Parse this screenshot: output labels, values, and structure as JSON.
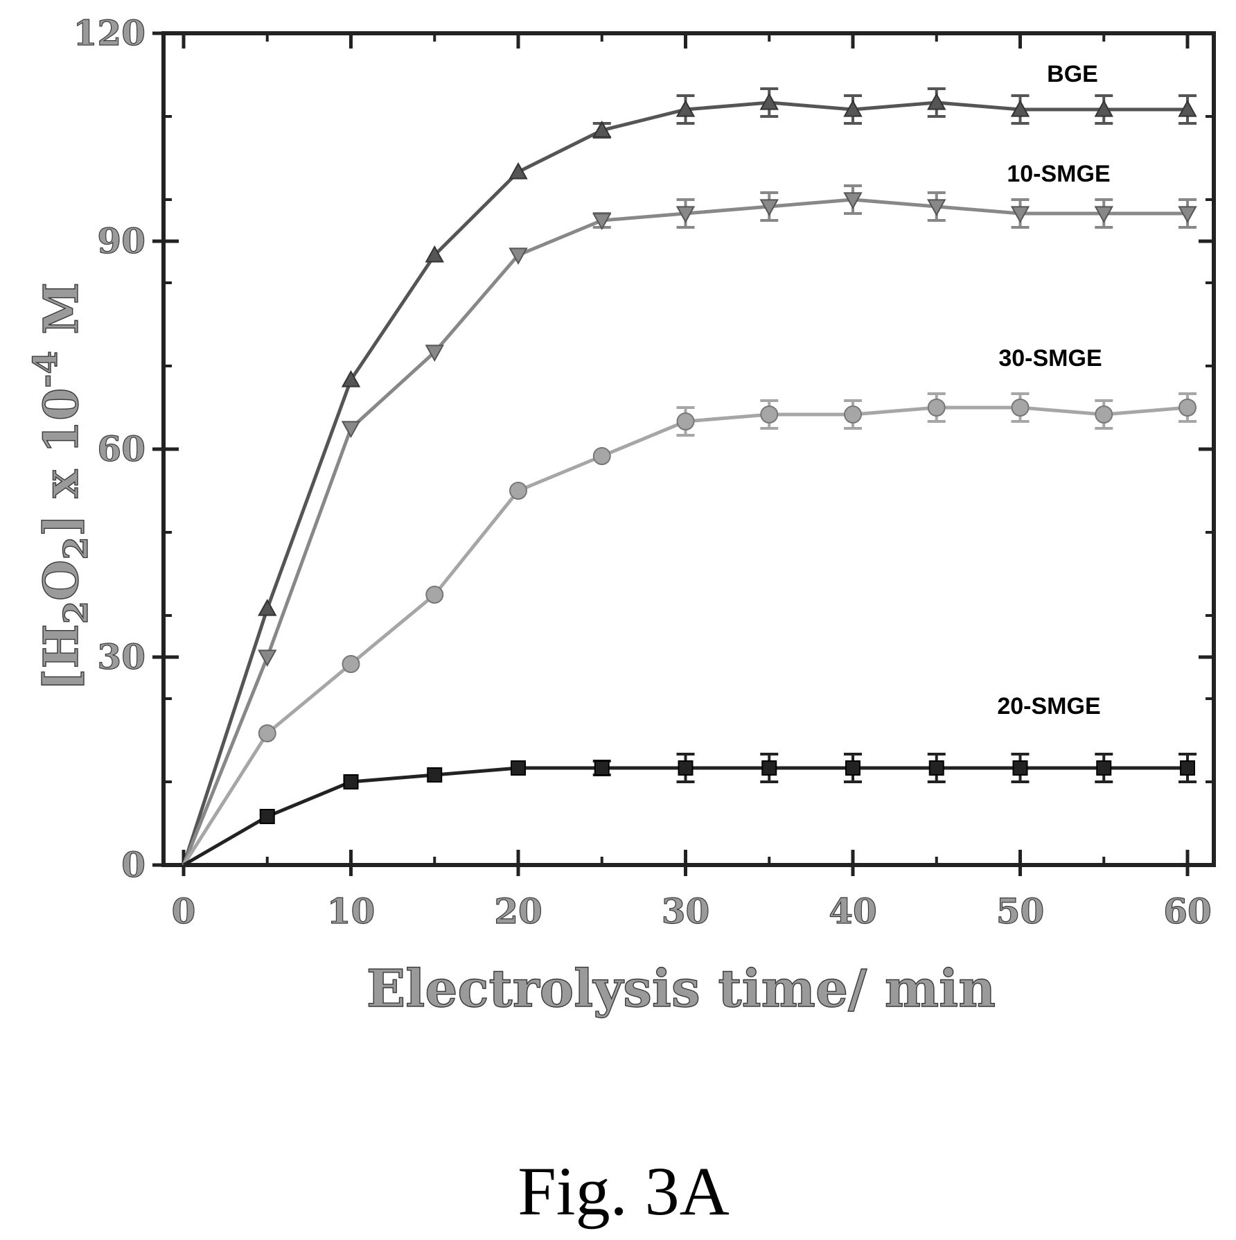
{
  "figure": {
    "caption": "Fig. 3A"
  },
  "chart_data": {
    "type": "line",
    "title": "",
    "xlabel": "Electrolysis time/ min",
    "ylabel": {
      "base": "[H",
      "sub1": "2",
      "mid": "O",
      "sub2": "2",
      "tail": "] x 10",
      "sup": "-4",
      "unit": " M"
    },
    "xlim": [
      0,
      62
    ],
    "ylim": [
      0,
      120
    ],
    "xticks": [
      0,
      10,
      20,
      30,
      40,
      50,
      60
    ],
    "yticks": [
      0,
      30,
      60,
      90,
      120
    ],
    "grid": false,
    "legend": "none",
    "x": [
      0,
      5,
      10,
      15,
      20,
      25,
      30,
      35,
      40,
      45,
      50,
      55,
      60
    ],
    "series": [
      {
        "name": "BGE",
        "marker": "triangle-up",
        "color": "#555555",
        "values": [
          0,
          37,
          70,
          88,
          100,
          106,
          109,
          110,
          109,
          110,
          109,
          109,
          109
        ],
        "errors": [
          0,
          0,
          0,
          0,
          0,
          1,
          2,
          2,
          2,
          2,
          2,
          2,
          2
        ]
      },
      {
        "name": "10-SMGE",
        "marker": "triangle-down",
        "color": "#888888",
        "values": [
          0,
          30,
          63,
          74,
          88,
          93,
          94,
          95,
          96,
          95,
          94,
          94,
          94
        ],
        "errors": [
          0,
          0,
          0,
          0,
          0,
          1,
          2,
          2,
          2,
          2,
          2,
          2,
          2
        ]
      },
      {
        "name": "30-SMGE",
        "marker": "circle",
        "color": "#a6a6a6",
        "values": [
          0,
          19,
          29,
          39,
          54,
          59,
          64,
          65,
          65,
          66,
          66,
          65,
          66
        ],
        "errors": [
          0,
          0,
          0,
          0,
          0,
          0,
          2,
          2,
          2,
          2,
          2,
          2,
          2
        ]
      },
      {
        "name": "20-SMGE",
        "marker": "square",
        "color": "#222222",
        "values": [
          0,
          7,
          12,
          13,
          14,
          14,
          14,
          14,
          14,
          14,
          14,
          14,
          14
        ],
        "errors": [
          0,
          0,
          0,
          0,
          0,
          1,
          2,
          2,
          2,
          2,
          2,
          2,
          2
        ]
      }
    ]
  }
}
